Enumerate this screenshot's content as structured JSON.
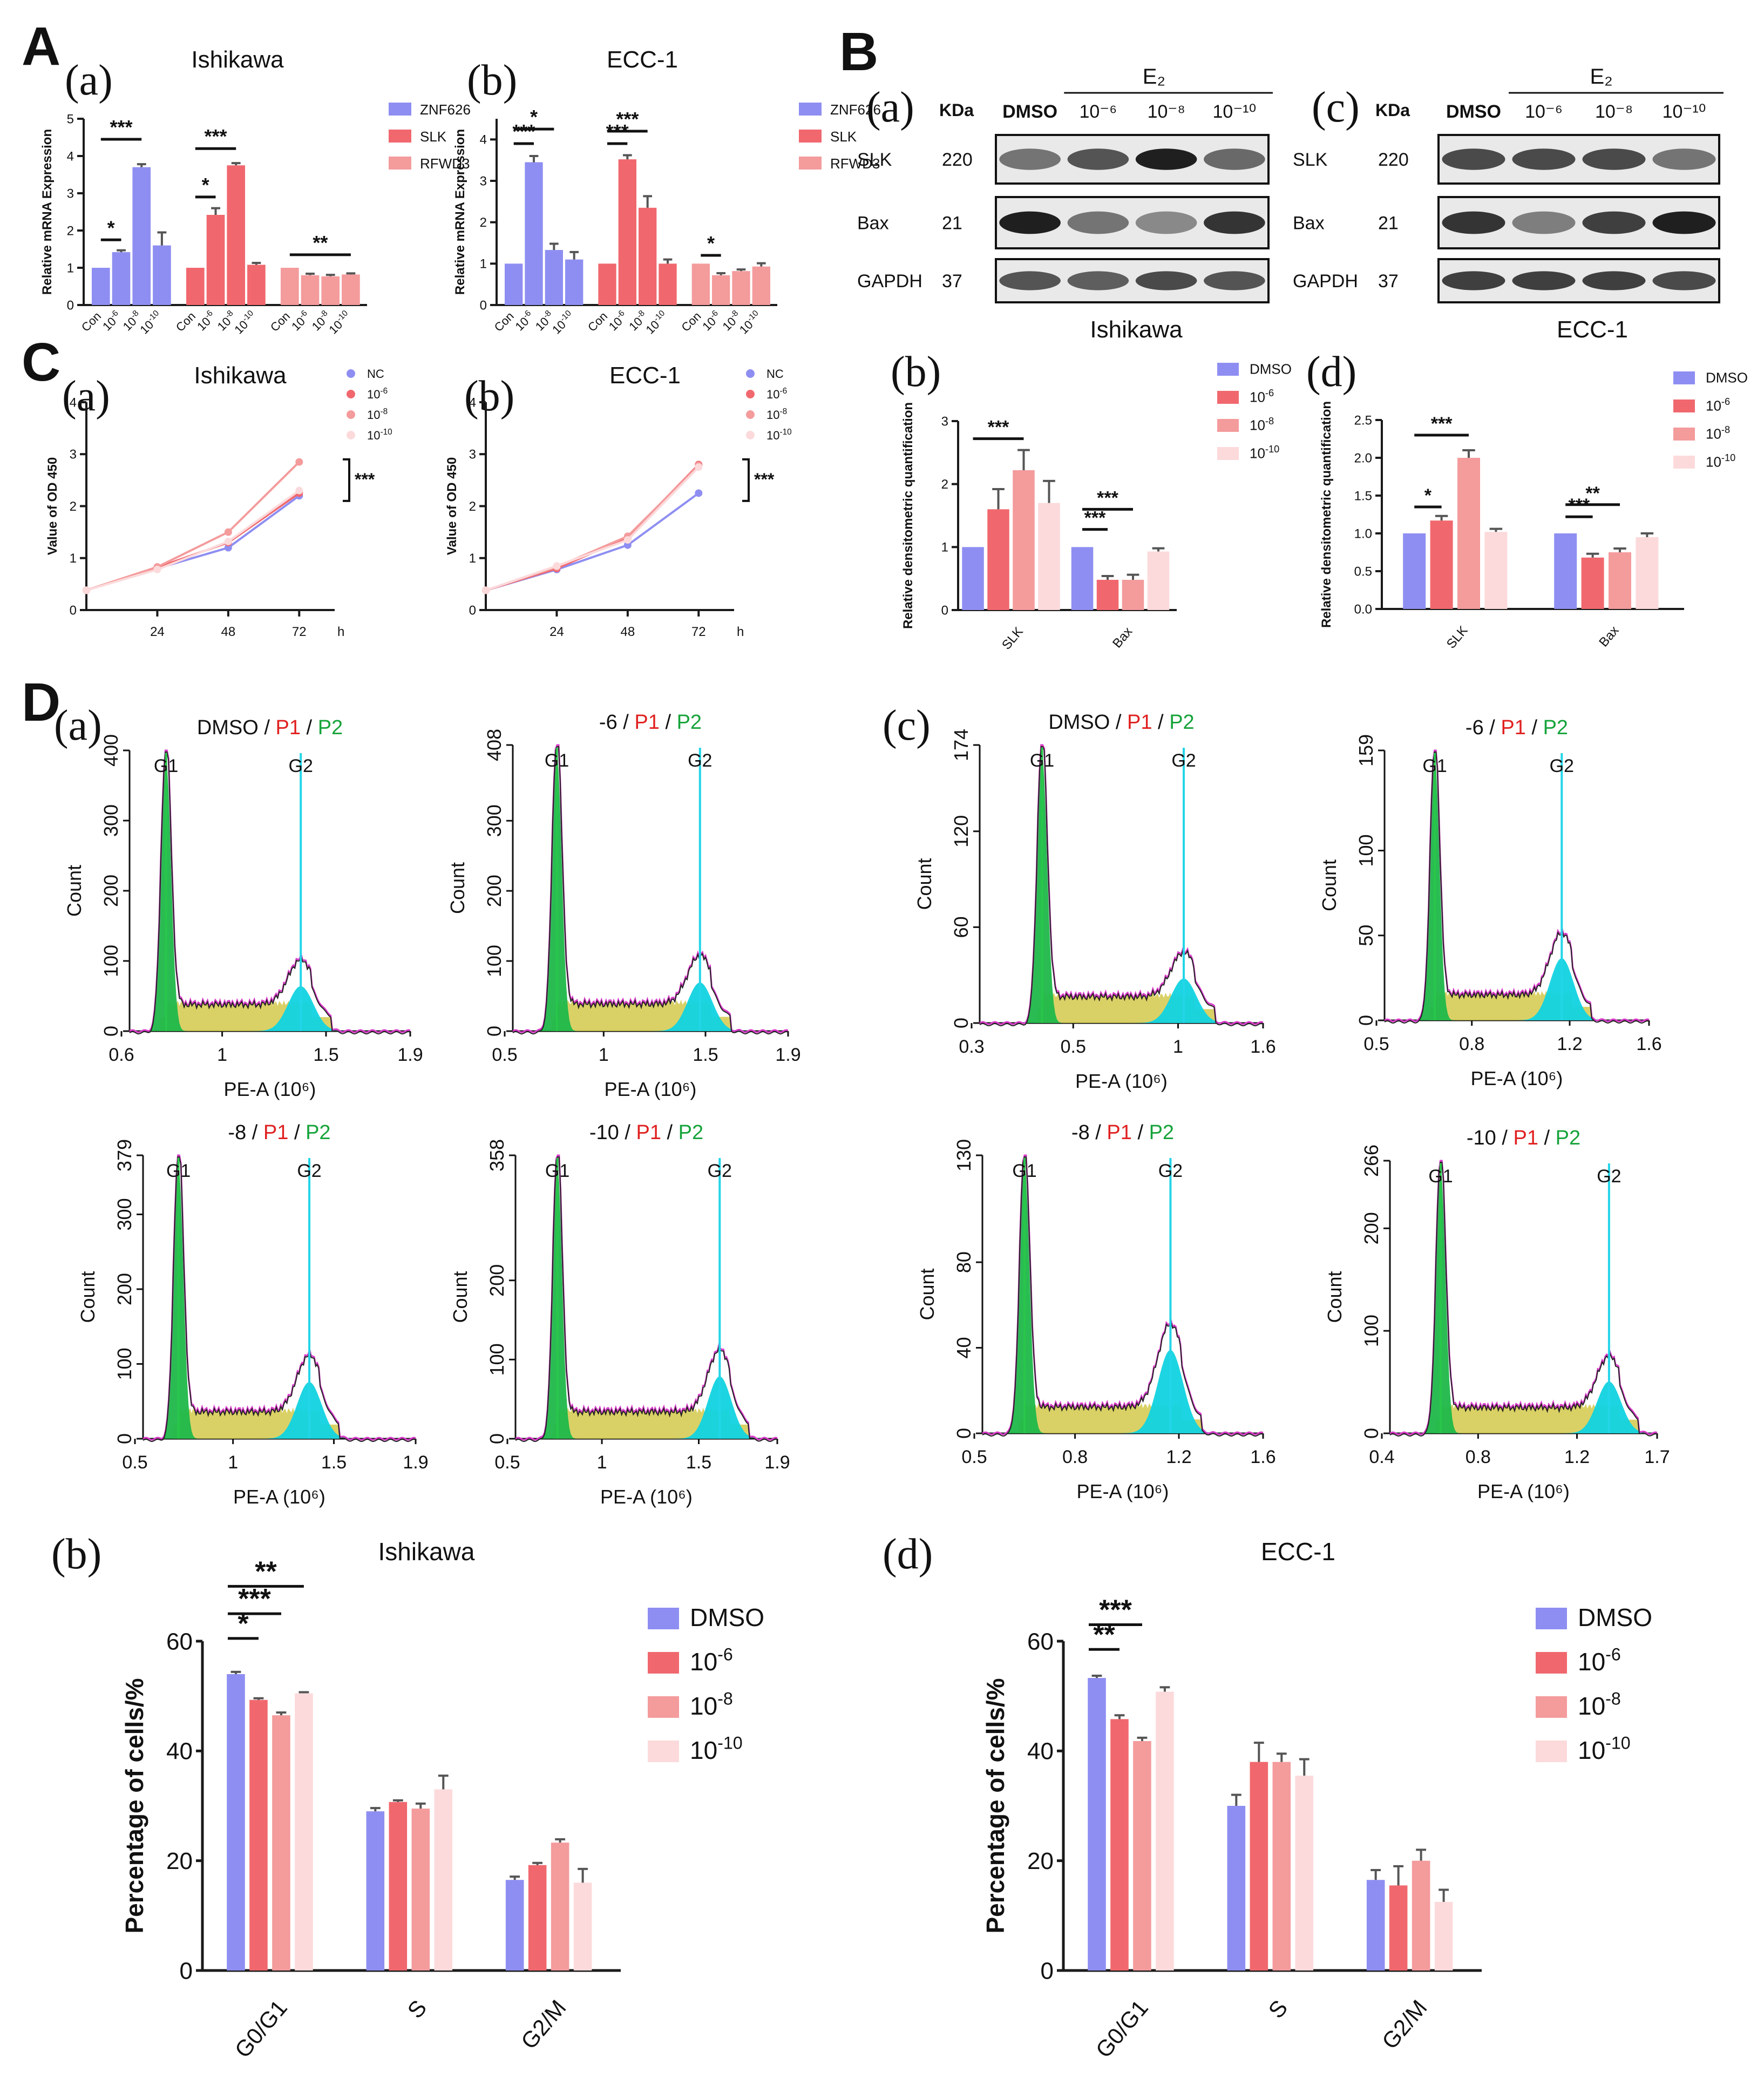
{
  "colors": {
    "c1": "#8e8ef2",
    "c2": "#f0686e",
    "c3": "#f49b9c",
    "c4": "#fcdadb",
    "axis": "#1a1a1a",
    "gate_line": "#23d5e8",
    "g1_fill": "#1fb84a",
    "s_fill": "#d6cc55",
    "g2_fill": "#11d3e0",
    "fit_line": "#d83ac9"
  },
  "panels": {
    "A": "A",
    "B": "B",
    "C": "C",
    "D": "D"
  },
  "sub": {
    "a": "(a)",
    "b": "(b)",
    "c": "(c)",
    "d": "(d)"
  },
  "chart_data": [
    {
      "id": "A_a",
      "type": "bar",
      "title": "Ishikawa",
      "ylabel": "Relative mRNA Expression",
      "ylim": [
        0,
        5
      ],
      "yticks": [
        0,
        1,
        2,
        3,
        4,
        5
      ],
      "groups": [
        {
          "series": "ZNF626",
          "categories": [
            "Con",
            "10-6",
            "10-8",
            "10-10"
          ],
          "values": [
            1.0,
            1.42,
            3.7,
            1.6
          ],
          "errors": [
            0,
            0.05,
            0.08,
            0.35
          ]
        },
        {
          "series": "SLK",
          "categories": [
            "Con",
            "10-6",
            "10-8",
            "10-10"
          ],
          "values": [
            1.0,
            2.42,
            3.75,
            1.08
          ],
          "errors": [
            0,
            0.18,
            0.06,
            0.05
          ]
        },
        {
          "series": "RFWD3",
          "categories": [
            "Con",
            "10-6",
            "10-8",
            "10-10"
          ],
          "values": [
            1.0,
            0.8,
            0.77,
            0.82
          ],
          "errors": [
            0,
            0.04,
            0.04,
            0.03
          ]
        }
      ],
      "legend": [
        "ZNF626",
        "SLK",
        "RFWD3"
      ],
      "significance": [
        "*",
        "***",
        "*",
        "***",
        "**"
      ]
    },
    {
      "id": "A_b",
      "type": "bar",
      "title": "ECC-1",
      "ylabel": "Relative mRNA Expression",
      "ylim": [
        0,
        4.5
      ],
      "yticks": [
        0,
        1,
        2,
        3,
        4
      ],
      "groups": [
        {
          "series": "ZNF626",
          "categories": [
            "Con",
            "10-6",
            "10-8",
            "10-10"
          ],
          "values": [
            1.0,
            3.45,
            1.33,
            1.1
          ],
          "errors": [
            0,
            0.15,
            0.15,
            0.18
          ]
        },
        {
          "series": "SLK",
          "categories": [
            "Con",
            "10-6",
            "10-8",
            "10-10"
          ],
          "values": [
            1.0,
            3.52,
            2.35,
            1.0
          ],
          "errors": [
            0,
            0.1,
            0.28,
            0.1
          ]
        },
        {
          "series": "RFWD3",
          "categories": [
            "Con",
            "10-6",
            "10-8",
            "10-10"
          ],
          "values": [
            1.0,
            0.72,
            0.82,
            0.93
          ],
          "errors": [
            0,
            0.05,
            0.04,
            0.08
          ]
        }
      ],
      "legend": [
        "ZNF626",
        "SLK",
        "RFWD3"
      ],
      "significance": [
        "***",
        "*",
        "***",
        "***",
        "*"
      ]
    },
    {
      "id": "B_b",
      "type": "bar",
      "title": "",
      "ylabel": "Relative densitometric quantification",
      "ylim": [
        0,
        3
      ],
      "yticks": [
        0,
        1,
        2,
        3
      ],
      "categories": [
        "SLK",
        "Bax"
      ],
      "series": [
        {
          "name": "DMSO",
          "values": [
            1.0,
            1.0
          ],
          "errors": [
            0,
            0
          ]
        },
        {
          "name": "10-6",
          "values": [
            1.6,
            0.48
          ],
          "errors": [
            0.32,
            0.06
          ]
        },
        {
          "name": "10-8",
          "values": [
            2.22,
            0.48
          ],
          "errors": [
            0.32,
            0.08
          ]
        },
        {
          "name": "10-10",
          "values": [
            1.7,
            0.93
          ],
          "errors": [
            0.35,
            0.05
          ]
        }
      ],
      "significance": [
        "***",
        "***",
        "***"
      ]
    },
    {
      "id": "B_d",
      "type": "bar",
      "title": "",
      "ylabel": "Relative densitometric quantification",
      "ylim": [
        0,
        2.5
      ],
      "yticks": [
        0.0,
        0.5,
        1.0,
        1.5,
        2.0,
        2.5
      ],
      "categories": [
        "SLK",
        "Bax"
      ],
      "series": [
        {
          "name": "DMSO",
          "values": [
            1.0,
            1.0
          ],
          "errors": [
            0,
            0
          ]
        },
        {
          "name": "10-6",
          "values": [
            1.17,
            0.68
          ],
          "errors": [
            0.06,
            0.05
          ]
        },
        {
          "name": "10-8",
          "values": [
            2.0,
            0.75
          ],
          "errors": [
            0.1,
            0.05
          ]
        },
        {
          "name": "10-10",
          "values": [
            1.02,
            0.95
          ],
          "errors": [
            0.04,
            0.05
          ]
        }
      ],
      "significance": [
        "*",
        "***",
        "***",
        "**"
      ]
    },
    {
      "id": "C_a",
      "type": "line",
      "title": "Ishikawa",
      "ylabel": "Value of OD 450",
      "xlabel": "h",
      "x": [
        0,
        24,
        48,
        72
      ],
      "ylim": [
        0,
        4
      ],
      "yticks": [
        0,
        1,
        2,
        3,
        4
      ],
      "series": [
        {
          "name": "NC",
          "values": [
            0.38,
            0.8,
            1.2,
            2.2
          ]
        },
        {
          "name": "10-6",
          "values": [
            0.38,
            0.82,
            1.3,
            2.25
          ]
        },
        {
          "name": "10-8",
          "values": [
            0.38,
            0.83,
            1.5,
            2.85
          ]
        },
        {
          "name": "10-10",
          "values": [
            0.38,
            0.78,
            1.32,
            2.3
          ]
        }
      ],
      "significance": [
        "***"
      ]
    },
    {
      "id": "C_b",
      "type": "line",
      "title": "ECC-1",
      "ylabel": "Value of OD 450",
      "xlabel": "h",
      "x": [
        0,
        24,
        48,
        72
      ],
      "ylim": [
        0,
        4
      ],
      "yticks": [
        0,
        1,
        2,
        3,
        4
      ],
      "series": [
        {
          "name": "NC",
          "values": [
            0.38,
            0.78,
            1.25,
            2.25
          ]
        },
        {
          "name": "10-6",
          "values": [
            0.38,
            0.8,
            1.4,
            2.8
          ]
        },
        {
          "name": "10-8",
          "values": [
            0.38,
            0.83,
            1.42,
            2.78
          ]
        },
        {
          "name": "10-10",
          "values": [
            0.38,
            0.85,
            1.35,
            2.75
          ]
        }
      ],
      "significance": [
        "***"
      ]
    },
    {
      "id": "D_b",
      "type": "bar",
      "title": "Ishikawa",
      "ylabel": "Percentage of cells/%",
      "ylim": [
        0,
        60
      ],
      "yticks": [
        0,
        20,
        40,
        60
      ],
      "categories": [
        "G0/G1",
        "S",
        "G2/M"
      ],
      "series": [
        {
          "name": "DMSO",
          "values": [
            54,
            29,
            16.5
          ],
          "errors": [
            0.4,
            0.6,
            0.6
          ]
        },
        {
          "name": "10-6",
          "values": [
            49.3,
            30.7,
            19.2
          ],
          "errors": [
            0.3,
            0.3,
            0.4
          ]
        },
        {
          "name": "10-8",
          "values": [
            46.5,
            29.5,
            23.3
          ],
          "errors": [
            0.5,
            0.9,
            0.6
          ]
        },
        {
          "name": "10-10",
          "values": [
            50.5,
            33,
            16
          ],
          "errors": [
            0.2,
            2.5,
            2.5
          ]
        }
      ],
      "significance": [
        "*",
        "***",
        "**"
      ]
    },
    {
      "id": "D_d",
      "type": "bar",
      "title": "ECC-1",
      "ylabel": "Percentage of cells/%",
      "ylim": [
        0,
        60
      ],
      "yticks": [
        0,
        20,
        40,
        60
      ],
      "categories": [
        "G0/G1",
        "S",
        "G2/M"
      ],
      "series": [
        {
          "name": "DMSO",
          "values": [
            53.3,
            30,
            16.5
          ],
          "errors": [
            0.4,
            2,
            1.8
          ]
        },
        {
          "name": "10-6",
          "values": [
            45.8,
            38,
            15.5
          ],
          "errors": [
            0.7,
            3.5,
            3.5
          ]
        },
        {
          "name": "10-8",
          "values": [
            41.8,
            38,
            20
          ],
          "errors": [
            0.6,
            1.5,
            2
          ]
        },
        {
          "name": "10-10",
          "values": [
            50.8,
            35.5,
            12.5
          ],
          "errors": [
            0.8,
            3,
            2.2
          ]
        }
      ],
      "significance": [
        "**",
        "***"
      ]
    }
  ],
  "western": {
    "ishikawa": {
      "caption": "Ishikawa",
      "kda_label": "KDa",
      "lane_labels": [
        "DMSO",
        "10⁻⁶",
        "10⁻⁸",
        "10⁻¹⁰"
      ],
      "treatment": "E₂",
      "rows": [
        {
          "name": "SLK",
          "kda": "220"
        },
        {
          "name": "Bax",
          "kda": "21"
        },
        {
          "name": "GAPDH",
          "kda": "37"
        }
      ]
    },
    "ecc1": {
      "caption": "ECC-1",
      "kda_label": "KDa",
      "lane_labels": [
        "DMSO",
        "10⁻⁶",
        "10⁻⁸",
        "10⁻¹⁰"
      ],
      "treatment": "E₂",
      "rows": [
        {
          "name": "SLK",
          "kda": "220"
        },
        {
          "name": "Bax",
          "kda": "21"
        },
        {
          "name": "GAPDH",
          "kda": "37"
        }
      ]
    }
  },
  "flow": {
    "ylabel": "Count",
    "xlabel": "PE-A (10⁶)",
    "g1": "G1",
    "g2": "G2",
    "p1": "P1",
    "p2": "P2",
    "sep": "/",
    "panels": [
      {
        "title": "DMSO",
        "ymax": 400,
        "yticks": [
          "0",
          "100",
          "200",
          "300",
          "400"
        ],
        "xticks": [
          "0.6",
          "1",
          "1.5",
          "1.9"
        ]
      },
      {
        "title": "-6",
        "ymax": 408,
        "yticks": [
          "0",
          "100",
          "200",
          "300",
          "408"
        ],
        "xticks": [
          "0.5",
          "1",
          "1.5",
          "1.9"
        ]
      },
      {
        "title": "-8",
        "ymax": 379,
        "yticks": [
          "0",
          "100",
          "200",
          "300",
          "379"
        ],
        "xticks": [
          "0.5",
          "1",
          "1.5",
          "1.9"
        ]
      },
      {
        "title": "-10",
        "ymax": 358,
        "yticks": [
          "0",
          "100",
          "200",
          "358"
        ],
        "xticks": [
          "0.5",
          "1",
          "1.5",
          "1.9"
        ]
      },
      {
        "title": "DMSO",
        "ymax": 174,
        "yticks": [
          "0",
          "60",
          "120",
          "174"
        ],
        "xticks": [
          "0.3",
          "0.5",
          "1",
          "1.6"
        ]
      },
      {
        "title": "-6",
        "ymax": 159,
        "yticks": [
          "0",
          "50",
          "100",
          "159"
        ],
        "xticks": [
          "0.5",
          "0.8",
          "1.2",
          "1.6"
        ]
      },
      {
        "title": "-8",
        "ymax": 130,
        "yticks": [
          "0",
          "40",
          "80",
          "130"
        ],
        "xticks": [
          "0.5",
          "0.8",
          "1.2",
          "1.6"
        ]
      },
      {
        "title": "-10",
        "ymax": 266,
        "yticks": [
          "0",
          "100",
          "200",
          "266"
        ],
        "xticks": [
          "0.4",
          "0.8",
          "1.2",
          "1.7"
        ]
      }
    ]
  }
}
